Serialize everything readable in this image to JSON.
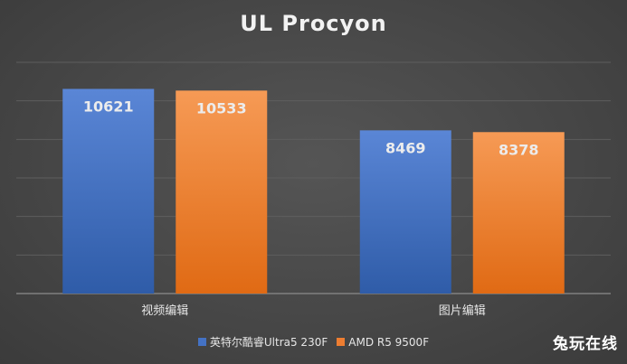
{
  "chart_data": {
    "type": "bar",
    "title": "UL Procyon",
    "categories": [
      "视频编辑",
      "图片编辑"
    ],
    "series": [
      {
        "name": "英特尔酷睿Ultra5 230F",
        "values": [
          10621,
          8469
        ],
        "color": "#4472C4"
      },
      {
        "name": "AMD R5 9500F",
        "values": [
          10533,
          8378
        ],
        "color": "#ED7D31"
      }
    ],
    "ylim": [
      0,
      12000
    ],
    "grid": true,
    "legend": "bottom"
  },
  "watermark": "兔玩在线"
}
